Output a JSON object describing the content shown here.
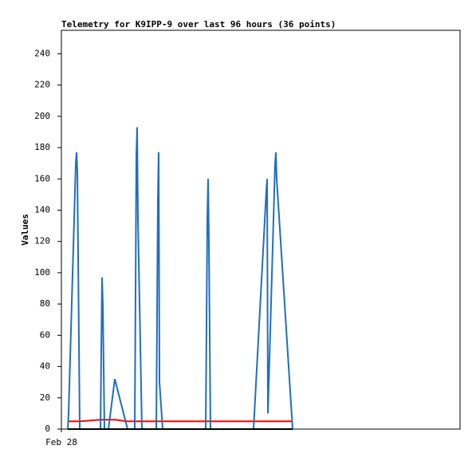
{
  "chart_data": {
    "type": "line",
    "title": "Telemetry for K9IPP-9 over last 96 hours (36 points)",
    "y_label": "Values",
    "x": [
      1.54,
      1.73,
      3.46,
      3.65,
      3.84,
      4.42,
      9.41,
      9.79,
      9.98,
      10.37,
      11.33,
      12.86,
      15.94,
      17.66,
      18.05,
      18.24,
      18.43,
      19.39,
      22.85,
      23.23,
      23.42,
      23.62,
      24.38,
      34.75,
      35.14,
      35.33,
      35.52,
      35.9,
      46.27,
      49.34,
      49.54,
      49.73,
      51.46,
      51.65,
      51.84,
      55.68
    ],
    "series": [
      {
        "color": "#000000",
        "values": [
          0,
          0,
          0,
          0,
          0,
          0,
          0,
          0,
          0,
          0,
          0,
          0,
          0,
          0,
          0,
          0,
          0,
          0,
          0,
          0,
          0,
          0,
          0,
          0,
          0,
          0,
          0,
          0,
          0,
          0,
          0,
          0,
          0,
          0,
          0,
          0
        ]
      },
      {
        "color": "#ff0000",
        "values": [
          5,
          5,
          5,
          5,
          5,
          5,
          6,
          6,
          6,
          6,
          6,
          6,
          5,
          5,
          5,
          5,
          5,
          5,
          5,
          5,
          5,
          5,
          5,
          5,
          5,
          5,
          5,
          5,
          5,
          5,
          5,
          5,
          5,
          5,
          5,
          5
        ]
      },
      {
        "color": "#1f6fc0",
        "values": [
          0,
          10,
          170,
          177,
          165,
          0,
          0,
          97,
          80,
          0,
          0,
          32,
          0,
          0,
          175,
          193,
          135,
          0,
          0,
          147,
          177,
          30,
          0,
          0,
          135,
          160,
          120,
          0,
          0,
          152,
          160,
          10,
          170,
          177,
          160,
          0
        ]
      }
    ],
    "xlim": [
      0,
      96
    ],
    "xticks": [
      {
        "value": 0,
        "label": "Feb 28"
      }
    ],
    "ylim": [
      0,
      255
    ],
    "yticks": [
      0,
      20,
      40,
      60,
      80,
      100,
      120,
      140,
      160,
      180,
      200,
      220,
      240
    ]
  }
}
